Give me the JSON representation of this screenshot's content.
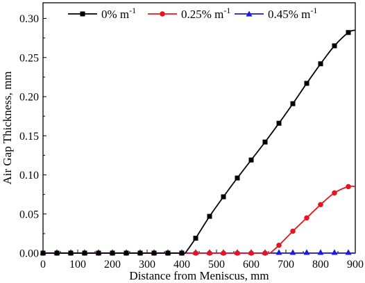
{
  "chart_data": {
    "type": "line",
    "title": "",
    "xlabel": "Distance from Meniscus, mm",
    "ylabel": "Air Gap Thickness, mm",
    "xlim": [
      0,
      900
    ],
    "ylim": [
      0,
      0.32
    ],
    "xticks": [
      0,
      100,
      200,
      300,
      400,
      500,
      600,
      700,
      800,
      900
    ],
    "yticks": [
      0.0,
      0.05,
      0.1,
      0.15,
      0.2,
      0.25,
      0.3
    ],
    "xtick_labels": [
      "0",
      "100",
      "200",
      "300",
      "400",
      "500",
      "600",
      "700",
      "800",
      "900"
    ],
    "ytick_labels": [
      "0.00",
      "0.05",
      "0.10",
      "0.15",
      "0.20",
      "0.25",
      "0.30"
    ],
    "grid": false,
    "legend_position": "top",
    "series": [
      {
        "name": "0% m",
        "name_sup": "-1",
        "color": "#000000",
        "marker": "square",
        "x": [
          0,
          40,
          80,
          120,
          160,
          200,
          240,
          280,
          320,
          360,
          400,
          440,
          480,
          520,
          560,
          600,
          640,
          680,
          720,
          760,
          800,
          840,
          880
        ],
        "y": [
          0,
          0,
          0,
          0,
          0,
          0,
          0,
          0,
          0,
          0,
          0,
          0.019,
          0.047,
          0.072,
          0.096,
          0.119,
          0.142,
          0.166,
          0.191,
          0.217,
          0.242,
          0.265,
          0.282
        ],
        "curve_x": [
          0,
          410,
          440,
          480,
          520,
          560,
          600,
          640,
          680,
          720,
          760,
          800,
          840,
          880,
          900
        ],
        "curve_y": [
          0,
          0,
          0.019,
          0.047,
          0.072,
          0.096,
          0.119,
          0.142,
          0.166,
          0.191,
          0.217,
          0.242,
          0.265,
          0.282,
          0.285
        ]
      },
      {
        "name": "0.25% m",
        "name_sup": "-1",
        "color": "#e8141b",
        "marker": "circle",
        "x": [
          0,
          40,
          80,
          120,
          160,
          200,
          240,
          280,
          320,
          360,
          400,
          440,
          480,
          520,
          560,
          600,
          640,
          680,
          720,
          760,
          800,
          840,
          880
        ],
        "y": [
          0,
          0,
          0,
          0,
          0,
          0,
          0,
          0,
          0,
          0,
          0,
          0,
          0,
          0,
          0,
          0,
          0,
          0.01,
          0.028,
          0.045,
          0.062,
          0.077,
          0.085
        ],
        "curve_x": [
          0,
          655,
          680,
          720,
          760,
          800,
          840,
          880,
          900
        ],
        "curve_y": [
          0,
          0,
          0.01,
          0.028,
          0.045,
          0.062,
          0.077,
          0.085,
          0.085
        ]
      },
      {
        "name": "0.45% m",
        "name_sup": "-1",
        "color": "#1a1ae6",
        "marker": "triangle",
        "x": [
          0,
          40,
          80,
          120,
          160,
          200,
          240,
          280,
          320,
          360,
          400,
          440,
          480,
          520,
          560,
          600,
          640,
          680,
          720,
          760,
          800,
          840,
          880
        ],
        "y": [
          0.001,
          0.001,
          0.001,
          0.001,
          0.001,
          0.001,
          0.001,
          0.001,
          0.001,
          0.001,
          0.001,
          0.001,
          0.001,
          0.001,
          0.001,
          0.001,
          0.001,
          0.001,
          0.001,
          0.001,
          0.001,
          0.001,
          0.001
        ],
        "curve_x": [
          0,
          900
        ],
        "curve_y": [
          0,
          0
        ]
      }
    ]
  }
}
